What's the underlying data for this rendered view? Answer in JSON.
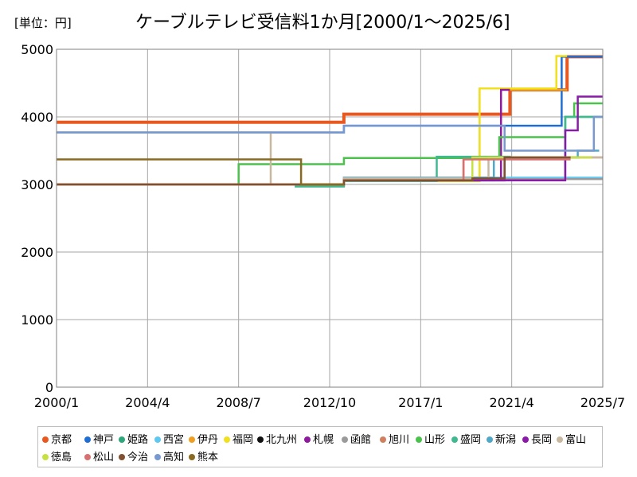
{
  "unit_label": "[単位：円]",
  "chart_data": {
    "type": "line",
    "title": "ケーブルテレビ受信料1か月[2000/1～2025/6]",
    "xlabel": "",
    "ylabel": "",
    "x_range": [
      "2000/1",
      "2025/7"
    ],
    "x_ticks": [
      "2000/1",
      "2004/4",
      "2008/7",
      "2012/10",
      "2017/1",
      "2021/4",
      "2025/7"
    ],
    "y_ticks": [
      "0",
      "1000",
      "2000",
      "3000",
      "4000",
      "5000"
    ],
    "ylim": [
      0,
      5000
    ],
    "grid": true,
    "legend_position": "bottom",
    "series": [
      {
        "name": "京都",
        "color": "#e8581f",
        "points": [
          [
            "2000/1",
            3920
          ],
          [
            "2013/6",
            3920
          ],
          [
            "2013/6",
            4040
          ],
          [
            "2021/3",
            4040
          ],
          [
            "2021/3",
            4400
          ],
          [
            "2023/11",
            4400
          ],
          [
            "2023/11",
            4890
          ],
          [
            "2025/7",
            4890
          ]
        ]
      },
      {
        "name": "神戸",
        "color": "#1f6ed4",
        "points": [
          [
            "2000/1",
            3770
          ],
          [
            "2013/6",
            3770
          ],
          [
            "2013/6",
            3870
          ],
          [
            "2023/8",
            3870
          ],
          [
            "2023/8",
            4890
          ],
          [
            "2025/7",
            4890
          ]
        ]
      },
      {
        "name": "姫路",
        "color": "#2ca87a",
        "points": [
          [
            "2000/1",
            3000
          ],
          [
            "2013/6",
            3000
          ],
          [
            "2013/6",
            3090
          ],
          [
            "2023/10",
            3090
          ],
          [
            "2023/10",
            4000
          ],
          [
            "2025/7",
            4000
          ]
        ]
      },
      {
        "name": "西宮",
        "color": "#5ec8f0",
        "points": [
          [
            "2000/1",
            3000
          ],
          [
            "2013/6",
            3000
          ],
          [
            "2013/6",
            3080
          ],
          [
            "2019/6",
            3080
          ],
          [
            "2019/6",
            3100
          ],
          [
            "2025/7",
            3100
          ]
        ]
      },
      {
        "name": "伊丹",
        "color": "#f0a020",
        "points": [
          [
            "2000/1",
            3000
          ],
          [
            "2013/6",
            3000
          ],
          [
            "2013/6",
            3060
          ],
          [
            "2019/10",
            3060
          ],
          [
            "2019/10",
            4420
          ],
          [
            "2021/3",
            4420
          ],
          [
            "2021/3",
            4400
          ],
          [
            "2023/11",
            4400
          ]
        ]
      },
      {
        "name": "福岡",
        "color": "#f0e020",
        "points": [
          [
            "2000/1",
            3000
          ],
          [
            "2013/6",
            3000
          ],
          [
            "2013/6",
            3050
          ],
          [
            "2019/10",
            3050
          ],
          [
            "2019/10",
            4420
          ],
          [
            "2021/3",
            4420
          ],
          [
            "2023/5",
            4420
          ],
          [
            "2023/5",
            4900
          ],
          [
            "2023/11",
            4900
          ]
        ]
      },
      {
        "name": "北九州",
        "color": "#111111",
        "points": [
          [
            "2000/1",
            3000
          ],
          [
            "2013/6",
            3000
          ],
          [
            "2013/6",
            3060
          ],
          [
            "2020/12",
            3060
          ],
          [
            "2020/12",
            3400
          ],
          [
            "2024/6",
            3400
          ]
        ]
      },
      {
        "name": "札幌",
        "color": "#8e1a9e",
        "points": [
          [
            "2000/1",
            3000
          ],
          [
            "2013/6",
            3000
          ],
          [
            "2013/6",
            3070
          ],
          [
            "2020/10",
            3070
          ],
          [
            "2020/10",
            4400
          ],
          [
            "2021/3",
            4400
          ]
        ]
      },
      {
        "name": "函館",
        "color": "#9a9a9a",
        "points": [
          [
            "2000/1",
            3000
          ],
          [
            "2011/3",
            3000
          ],
          [
            "2011/3",
            2980
          ],
          [
            "2013/6",
            2980
          ],
          [
            "2013/6",
            3060
          ],
          [
            "2020/6",
            3060
          ],
          [
            "2020/6",
            3080
          ],
          [
            "2025/7",
            3080
          ]
        ]
      },
      {
        "name": "旭川",
        "color": "#d08060",
        "points": [
          [
            "2000/1",
            3000
          ],
          [
            "2013/6",
            3000
          ],
          [
            "2013/6",
            3060
          ],
          [
            "2019/1",
            3060
          ],
          [
            "2019/1",
            3400
          ],
          [
            "2025/7",
            3400
          ]
        ]
      },
      {
        "name": "山形",
        "color": "#4cc24c",
        "points": [
          [
            "2000/1",
            3000
          ],
          [
            "2008/7",
            3000
          ],
          [
            "2008/7",
            3300
          ],
          [
            "2013/6",
            3300
          ],
          [
            "2013/6",
            3390
          ],
          [
            "2020/9",
            3390
          ],
          [
            "2020/9",
            3700
          ],
          [
            "2023/10",
            3700
          ],
          [
            "2023/10",
            4000
          ],
          [
            "2024/3",
            4000
          ],
          [
            "2024/3",
            4200
          ],
          [
            "2025/7",
            4200
          ]
        ]
      },
      {
        "name": "盛岡",
        "color": "#40b890",
        "points": [
          [
            "2000/1",
            3000
          ],
          [
            "2011/3",
            3000
          ],
          [
            "2011/3",
            2970
          ],
          [
            "2013/6",
            2970
          ],
          [
            "2013/6",
            3050
          ],
          [
            "2017/10",
            3050
          ],
          [
            "2017/10",
            3410
          ],
          [
            "2021/3",
            3410
          ],
          [
            "2021/3",
            3400
          ],
          [
            "2023/10",
            3400
          ],
          [
            "2023/10",
            4000
          ],
          [
            "2025/7",
            4000
          ]
        ]
      },
      {
        "name": "新潟",
        "color": "#50a8c8",
        "points": [
          [
            "2000/1",
            3000
          ],
          [
            "2013/6",
            3000
          ],
          [
            "2013/6",
            3100
          ],
          [
            "2020/6",
            3100
          ],
          [
            "2020/6",
            3400
          ],
          [
            "2024/5",
            3400
          ],
          [
            "2024/5",
            3500
          ],
          [
            "2025/5",
            3500
          ]
        ]
      },
      {
        "name": "長岡",
        "color": "#8a1aa8",
        "points": [
          [
            "2000/1",
            3000
          ],
          [
            "2013/6",
            3000
          ],
          [
            "2013/6",
            3060
          ],
          [
            "2023/10",
            3060
          ],
          [
            "2023/10",
            3800
          ],
          [
            "2024/5",
            3800
          ],
          [
            "2024/5",
            4300
          ],
          [
            "2025/7",
            4300
          ]
        ]
      },
      {
        "name": "富山",
        "color": "#c8b8a0",
        "points": [
          [
            "2000/1",
            3770
          ],
          [
            "2010/1",
            3770
          ],
          [
            "2010/1",
            3000
          ],
          [
            "2013/6",
            3000
          ],
          [
            "2013/6",
            3090
          ],
          [
            "2020/3",
            3090
          ],
          [
            "2020/3",
            3400
          ],
          [
            "2025/7",
            3400
          ]
        ]
      },
      {
        "name": "徳島",
        "color": "#c8e040",
        "points": [
          [
            "2000/1",
            3000
          ],
          [
            "2013/6",
            3000
          ],
          [
            "2013/6",
            3060
          ],
          [
            "2019/6",
            3060
          ],
          [
            "2019/6",
            3400
          ],
          [
            "2025/1",
            3400
          ]
        ]
      },
      {
        "name": "松山",
        "color": "#d87070",
        "points": [
          [
            "2000/1",
            3000
          ],
          [
            "2013/6",
            3000
          ],
          [
            "2013/6",
            3060
          ],
          [
            "2019/1",
            3060
          ],
          [
            "2019/1",
            3370
          ],
          [
            "2024/1",
            3370
          ]
        ]
      },
      {
        "name": "今治",
        "color": "#805030",
        "points": [
          [
            "2000/1",
            3000
          ],
          [
            "2013/6",
            3000
          ],
          [
            "2013/6",
            3060
          ],
          [
            "2019/6",
            3060
          ],
          [
            "2019/6",
            3090
          ],
          [
            "2020/12",
            3090
          ],
          [
            "2020/12",
            3400
          ],
          [
            "2024/1",
            3400
          ]
        ]
      },
      {
        "name": "高知",
        "color": "#7898d0",
        "points": [
          [
            "2000/1",
            3770
          ],
          [
            "2013/6",
            3770
          ],
          [
            "2013/6",
            3870
          ],
          [
            "2020/12",
            3870
          ],
          [
            "2020/12",
            3500
          ],
          [
            "2025/2",
            3500
          ],
          [
            "2025/2",
            4000
          ],
          [
            "2025/7",
            4000
          ]
        ]
      },
      {
        "name": "熊本",
        "color": "#8a6a20",
        "points": [
          [
            "2000/1",
            3370
          ],
          [
            "2011/6",
            3370
          ],
          [
            "2011/6",
            3000
          ],
          [
            "2013/6",
            3000
          ]
        ]
      }
    ]
  }
}
